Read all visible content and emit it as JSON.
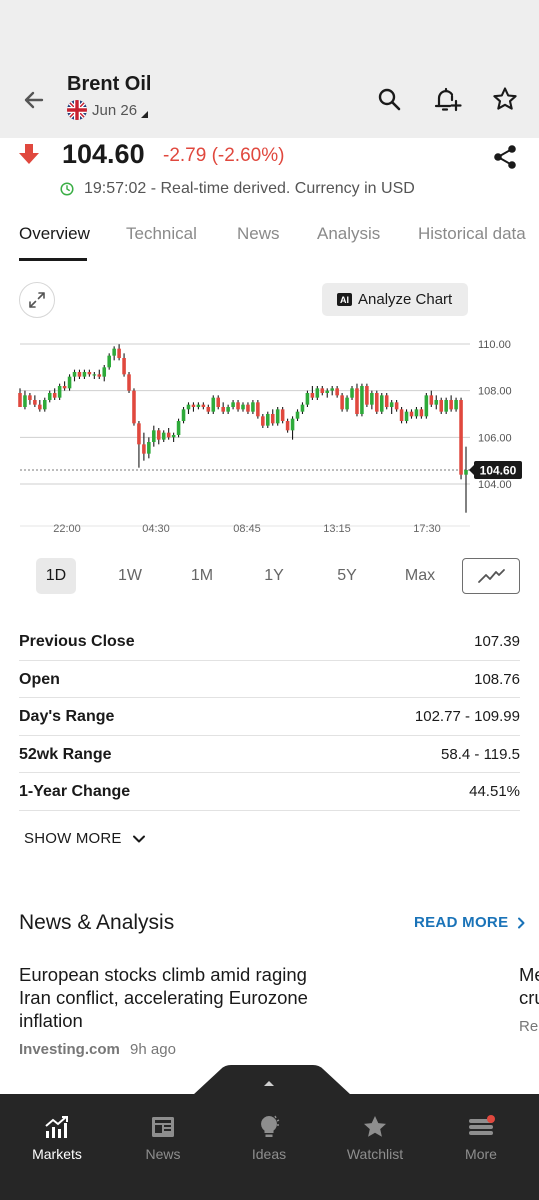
{
  "header": {
    "title": "Brent Oil",
    "subtitle": "Jun 26"
  },
  "quote": {
    "price": "104.60",
    "change": "-2.79 (-2.60%)",
    "status": "19:57:02 - Real-time derived. Currency in USD",
    "colors": {
      "down": "#e0483e",
      "up": "#2eaa3a",
      "live": "#3aae45"
    }
  },
  "tabs": [
    "Overview",
    "Technical",
    "News",
    "Analysis",
    "Historical data"
  ],
  "chart_toolbar": {
    "analyze_label": "Analyze Chart",
    "ai_badge": "AI"
  },
  "chart_data": {
    "type": "candlestick",
    "ylim": [
      102.2,
      110.6
    ],
    "y_ticks": [
      "110.00",
      "108.00",
      "106.00",
      "104.00"
    ],
    "x_ticks": [
      "22:00",
      "04:30",
      "08:45",
      "13:15",
      "17:30"
    ],
    "last_price_label": "104.60",
    "last_price": 104.6,
    "candles": [
      [
        107.9,
        108.1,
        107.3,
        107.3
      ],
      [
        107.3,
        108.0,
        107.2,
        107.8
      ],
      [
        107.8,
        107.9,
        107.4,
        107.6
      ],
      [
        107.6,
        107.8,
        107.3,
        107.4
      ],
      [
        107.4,
        107.6,
        107.1,
        107.2
      ],
      [
        107.2,
        107.7,
        107.1,
        107.6
      ],
      [
        107.6,
        108.0,
        107.5,
        107.9
      ],
      [
        107.9,
        108.1,
        107.6,
        107.7
      ],
      [
        107.7,
        108.3,
        107.6,
        108.2
      ],
      [
        108.2,
        108.4,
        108.0,
        108.1
      ],
      [
        108.1,
        108.7,
        108.0,
        108.6
      ],
      [
        108.6,
        108.9,
        108.4,
        108.8
      ],
      [
        108.8,
        108.9,
        108.5,
        108.6
      ],
      [
        108.6,
        108.9,
        108.5,
        108.8
      ],
      [
        108.8,
        108.9,
        108.6,
        108.7
      ],
      [
        108.7,
        108.8,
        108.5,
        108.7
      ],
      [
        108.7,
        108.9,
        108.5,
        108.6
      ],
      [
        108.6,
        109.1,
        108.4,
        109.0
      ],
      [
        109.0,
        109.6,
        108.9,
        109.5
      ],
      [
        109.5,
        109.9,
        109.3,
        109.8
      ],
      [
        109.8,
        109.99,
        109.3,
        109.4
      ],
      [
        109.4,
        109.6,
        108.6,
        108.7
      ],
      [
        108.7,
        108.8,
        107.9,
        108.0
      ],
      [
        108.0,
        108.1,
        106.5,
        106.6
      ],
      [
        106.6,
        106.7,
        104.7,
        105.7
      ],
      [
        105.7,
        106.2,
        105.0,
        105.3
      ],
      [
        105.3,
        106.0,
        105.1,
        105.8
      ],
      [
        105.8,
        106.5,
        105.6,
        106.3
      ],
      [
        106.3,
        106.4,
        105.7,
        105.9
      ],
      [
        105.9,
        106.3,
        105.8,
        106.2
      ],
      [
        106.2,
        106.4,
        105.9,
        106.0
      ],
      [
        106.0,
        106.2,
        105.8,
        106.1
      ],
      [
        106.1,
        106.8,
        106.0,
        106.7
      ],
      [
        106.7,
        107.3,
        106.6,
        107.2
      ],
      [
        107.2,
        107.5,
        107.0,
        107.4
      ],
      [
        107.4,
        107.5,
        107.1,
        107.3
      ],
      [
        107.3,
        107.5,
        107.2,
        107.4
      ],
      [
        107.4,
        107.5,
        107.2,
        107.3
      ],
      [
        107.3,
        107.4,
        107.0,
        107.1
      ],
      [
        107.1,
        107.8,
        107.0,
        107.7
      ],
      [
        107.7,
        107.8,
        107.2,
        107.3
      ],
      [
        107.3,
        107.5,
        107.0,
        107.1
      ],
      [
        107.1,
        107.4,
        107.0,
        107.3
      ],
      [
        107.3,
        107.6,
        107.2,
        107.5
      ],
      [
        107.5,
        107.6,
        107.1,
        107.2
      ],
      [
        107.2,
        107.5,
        107.1,
        107.4
      ],
      [
        107.4,
        107.5,
        107.0,
        107.1
      ],
      [
        107.1,
        107.6,
        107.0,
        107.5
      ],
      [
        107.5,
        107.6,
        106.8,
        106.9
      ],
      [
        106.9,
        107.0,
        106.4,
        106.5
      ],
      [
        106.5,
        107.1,
        106.4,
        107.0
      ],
      [
        107.0,
        107.2,
        106.5,
        106.6
      ],
      [
        106.6,
        107.3,
        106.5,
        107.2
      ],
      [
        107.2,
        107.3,
        106.6,
        106.7
      ],
      [
        106.7,
        106.8,
        106.2,
        106.3
      ],
      [
        106.3,
        106.9,
        105.9,
        106.8
      ],
      [
        106.8,
        107.2,
        106.7,
        107.1
      ],
      [
        107.1,
        107.5,
        107.0,
        107.4
      ],
      [
        107.4,
        108.0,
        107.3,
        107.9
      ],
      [
        107.9,
        108.2,
        107.6,
        107.7
      ],
      [
        107.7,
        108.2,
        107.6,
        108.1
      ],
      [
        108.1,
        108.2,
        107.8,
        107.9
      ],
      [
        107.9,
        108.1,
        107.7,
        108.0
      ],
      [
        108.0,
        108.2,
        107.8,
        108.1
      ],
      [
        108.1,
        108.2,
        107.7,
        107.8
      ],
      [
        107.8,
        107.9,
        107.1,
        107.2
      ],
      [
        107.2,
        107.8,
        107.1,
        107.7
      ],
      [
        107.7,
        108.2,
        107.6,
        108.1
      ],
      [
        108.1,
        108.3,
        106.9,
        107.0
      ],
      [
        107.0,
        108.3,
        106.9,
        108.2
      ],
      [
        108.2,
        108.3,
        107.3,
        107.4
      ],
      [
        107.4,
        108.0,
        107.2,
        107.9
      ],
      [
        107.9,
        108.0,
        107.0,
        107.1
      ],
      [
        107.1,
        107.9,
        107.0,
        107.8
      ],
      [
        107.8,
        107.9,
        107.2,
        107.3
      ],
      [
        107.3,
        107.6,
        107.0,
        107.5
      ],
      [
        107.5,
        107.6,
        107.1,
        107.2
      ],
      [
        107.2,
        107.3,
        106.6,
        106.7
      ],
      [
        106.7,
        107.2,
        106.6,
        107.1
      ],
      [
        107.1,
        107.2,
        106.8,
        106.9
      ],
      [
        106.9,
        107.3,
        106.8,
        107.2
      ],
      [
        107.2,
        107.3,
        106.8,
        106.9
      ],
      [
        106.9,
        107.9,
        106.8,
        107.8
      ],
      [
        107.8,
        108.0,
        107.3,
        107.4
      ],
      [
        107.4,
        107.8,
        107.2,
        107.6
      ],
      [
        107.6,
        107.7,
        107.0,
        107.1
      ],
      [
        107.1,
        107.7,
        107.0,
        107.6
      ],
      [
        107.6,
        107.8,
        107.1,
        107.2
      ],
      [
        107.2,
        107.7,
        107.1,
        107.6
      ],
      [
        107.6,
        107.7,
        104.2,
        104.4
      ],
      [
        104.4,
        105.6,
        102.77,
        104.6
      ]
    ]
  },
  "ranges": [
    "1D",
    "1W",
    "1M",
    "1Y",
    "5Y",
    "Max"
  ],
  "stats": [
    {
      "label": "Previous Close",
      "value": "107.39"
    },
    {
      "label": "Open",
      "value": "108.76"
    },
    {
      "label": "Day's Range",
      "value": "102.77 - 109.99"
    },
    {
      "label": "52wk Range",
      "value": "58.4 - 119.5"
    },
    {
      "label": "1-Year Change",
      "value": "44.51%"
    }
  ],
  "show_more_label": "SHOW MORE",
  "news": {
    "title": "News & Analysis",
    "read_more": "READ MORE",
    "articles": [
      {
        "title": "European stocks climb amid raging Iran conflict, accelerating Eurozone inflation",
        "source": "Investing.com",
        "time": "9h ago"
      },
      {
        "title_line1": "Me",
        "title_line2": "cru",
        "source": "Reu"
      }
    ]
  },
  "bottom_nav": [
    "Markets",
    "News",
    "Ideas",
    "Watchlist",
    "More"
  ]
}
